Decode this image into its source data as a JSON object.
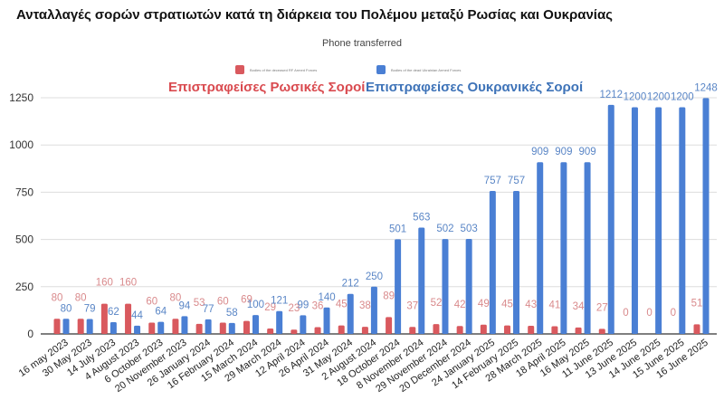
{
  "chart_data": {
    "type": "bar",
    "title": "Ανταλλαγές σορών στρατιωτών κατά τη διάρκεια του Πολέμου μεταξύ Ρωσίας και Ουκρανίας",
    "subtitle": "Phone transferred",
    "legend_position": "top",
    "legend": [
      "Bodies of the deceased RF Armed Forces",
      "Bodies of the dead Ukrainian Armed Forces"
    ],
    "annotations": [
      "Επιστραφείσες Ρωσικές Σοροί",
      "Επιστραφείσες Ουκρανικές Σοροί"
    ],
    "categories": [
      "16 may 2023",
      "30 May 2023",
      "14 July 2023",
      "4 August 2023",
      "6 October 2023",
      "20 November 2023",
      "26 January 2024",
      "16 February 2024",
      "15 March 2024",
      "29 March 2024",
      "12 April 2024",
      "26 April 2024",
      "31 May 2024",
      "2 August 2024",
      "18 October 2024",
      "8 November 2024",
      "29 November 2024",
      "20 December 2024",
      "24 January 2025",
      "14 February 2025",
      "28 March 2025",
      "18 April 2025",
      "16 May 2025",
      "11 June 2025",
      "13 June 2025",
      "14 June 2025",
      "15 June 2025",
      "16 June 2025"
    ],
    "series": [
      {
        "name": "Bodies of the deceased RF Armed Forces",
        "color": "#d9595e",
        "values": [
          80,
          80,
          160,
          160,
          60,
          80,
          53,
          60,
          69,
          29,
          23,
          36,
          45,
          38,
          89,
          37,
          52,
          42,
          49,
          45,
          43,
          41,
          34,
          27,
          0,
          0,
          0,
          51
        ]
      },
      {
        "name": "Bodies of the dead Ukrainian Armed Forces",
        "color": "#4a7fd4",
        "values": [
          80,
          79,
          62,
          44,
          64,
          94,
          77,
          58,
          100,
          121,
          99,
          140,
          212,
          250,
          501,
          563,
          502,
          503,
          757,
          757,
          909,
          909,
          909,
          1212,
          1200,
          1200,
          1200,
          1248
        ]
      }
    ],
    "yticks": [
      0,
      250,
      500,
      750,
      1000,
      1250
    ],
    "ylim": [
      0,
      1250
    ],
    "grid": true
  }
}
